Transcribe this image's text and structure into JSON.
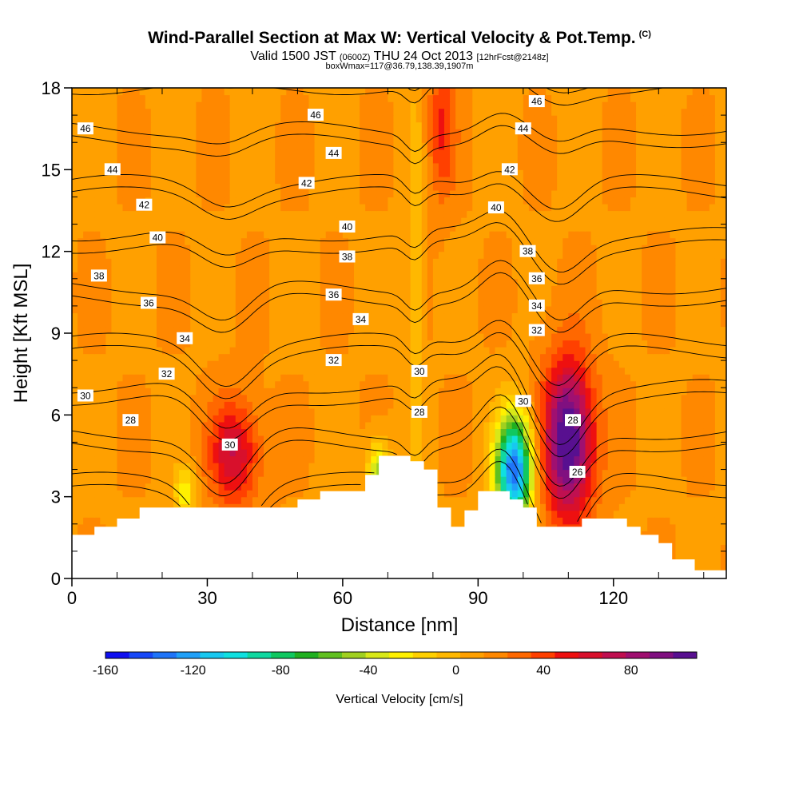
{
  "header": {
    "title": "Wind-Parallel Section at Max W: Vertical Velocity & Pot.Temp.",
    "copyright": "(C)",
    "valid_prefix": "Valid 1500 JST",
    "valid_utc": "(0600Z)",
    "valid_date": "THU 24 Oct 2013",
    "forecast": "[12hrFcst@2148z]",
    "box_info": "boxWmax=117@36.79,138.39,1907m"
  },
  "chart_data": {
    "type": "heatmap",
    "xlabel": "Distance [nm]",
    "ylabel": "Height [Kft MSL]",
    "xlim": [
      0,
      145
    ],
    "ylim": [
      0,
      18
    ],
    "x_ticks": [
      0,
      30,
      60,
      90,
      120
    ],
    "y_ticks": [
      0,
      3,
      6,
      9,
      12,
      15,
      18
    ],
    "colorbar": {
      "label": "Vertical Velocity [cm/s]",
      "range": [
        -160,
        110
      ],
      "tick_values": [
        -160,
        -120,
        -80,
        -40,
        0,
        40,
        80
      ],
      "colors": [
        "#1010f0",
        "#1848f8",
        "#1f74f8",
        "#20a0f8",
        "#18c8f0",
        "#10e0e0",
        "#10d8a0",
        "#10c860",
        "#20b020",
        "#60c020",
        "#a0d020",
        "#d8e818",
        "#fff000",
        "#ffd000",
        "#ffb800",
        "#ffa000",
        "#ff8800",
        "#ff6800",
        "#ff4000",
        "#ee1010",
        "#d8102c",
        "#c01050",
        "#a01070",
        "#801080",
        "#581090"
      ]
    },
    "terrain": [
      [
        0,
        1.6
      ],
      [
        5,
        1.6
      ],
      [
        5,
        1.9
      ],
      [
        10,
        1.9
      ],
      [
        10,
        2.2
      ],
      [
        15,
        2.2
      ],
      [
        15,
        2.6
      ],
      [
        50,
        2.6
      ],
      [
        50,
        2.9
      ],
      [
        55,
        2.9
      ],
      [
        55,
        3.2
      ],
      [
        65,
        3.2
      ],
      [
        65,
        3.8
      ],
      [
        68,
        3.8
      ],
      [
        68,
        4.5
      ],
      [
        75,
        4.5
      ],
      [
        75,
        4.3
      ],
      [
        78,
        4.3
      ],
      [
        78,
        4.0
      ],
      [
        81,
        4.0
      ],
      [
        81,
        2.6
      ],
      [
        84,
        2.6
      ],
      [
        84,
        1.9
      ],
      [
        87,
        1.9
      ],
      [
        87,
        2.5
      ],
      [
        90,
        2.5
      ],
      [
        90,
        3.2
      ],
      [
        97,
        3.2
      ],
      [
        97,
        2.9
      ],
      [
        100,
        2.9
      ],
      [
        100,
        2.6
      ],
      [
        103,
        2.6
      ],
      [
        103,
        1.9
      ],
      [
        113,
        1.9
      ],
      [
        113,
        2.2
      ],
      [
        123,
        2.2
      ],
      [
        123,
        1.9
      ],
      [
        126,
        1.9
      ],
      [
        126,
        1.6
      ],
      [
        130,
        1.6
      ],
      [
        130,
        1.3
      ],
      [
        133,
        1.3
      ],
      [
        133,
        0.7
      ],
      [
        138,
        0.7
      ],
      [
        138,
        0.3
      ],
      [
        145,
        0.3
      ]
    ],
    "w_features": [
      {
        "cx": 36,
        "cy": 4.6,
        "rx": 5.5,
        "ry": 1.9,
        "w": 55
      },
      {
        "cx": 110,
        "cy": 5.1,
        "rx": 5.5,
        "ry": 2.9,
        "w": 105
      },
      {
        "cx": 98,
        "cy": 4.0,
        "rx": 4.0,
        "ry": 2.0,
        "w": -150
      },
      {
        "cx": 82,
        "cy": 16.5,
        "rx": 3.0,
        "ry": 2.5,
        "w": 35
      },
      {
        "cx": 76,
        "cy": 10.5,
        "rx": 1.6,
        "ry": 7.0,
        "w": -25
      },
      {
        "cx": 68,
        "cy": 3.9,
        "rx": 2.5,
        "ry": 1.2,
        "w": -60
      },
      {
        "cx": 25,
        "cy": 3.2,
        "rx": 2.5,
        "ry": 0.9,
        "w": -40
      }
    ],
    "theta_levels": [
      26,
      28,
      30,
      32,
      34,
      36,
      38,
      40,
      42,
      44,
      46
    ],
    "contour_labels": [
      {
        "x": 3,
        "y": 16.5,
        "text": "46"
      },
      {
        "x": 54,
        "y": 17.0,
        "text": "46"
      },
      {
        "x": 103,
        "y": 17.5,
        "text": "46"
      },
      {
        "x": 9,
        "y": 15.0,
        "text": "44"
      },
      {
        "x": 58,
        "y": 15.6,
        "text": "44"
      },
      {
        "x": 100,
        "y": 16.5,
        "text": "44"
      },
      {
        "x": 16,
        "y": 13.7,
        "text": "42"
      },
      {
        "x": 52,
        "y": 14.5,
        "text": "42"
      },
      {
        "x": 97,
        "y": 15.0,
        "text": "42"
      },
      {
        "x": 19,
        "y": 12.5,
        "text": "40"
      },
      {
        "x": 61,
        "y": 12.9,
        "text": "40"
      },
      {
        "x": 94,
        "y": 13.6,
        "text": "40"
      },
      {
        "x": 6,
        "y": 11.1,
        "text": "38"
      },
      {
        "x": 61,
        "y": 11.8,
        "text": "38"
      },
      {
        "x": 101,
        "y": 12.0,
        "text": "38"
      },
      {
        "x": 17,
        "y": 10.1,
        "text": "36"
      },
      {
        "x": 58,
        "y": 10.4,
        "text": "36"
      },
      {
        "x": 103,
        "y": 11.0,
        "text": "36"
      },
      {
        "x": 25,
        "y": 8.8,
        "text": "34"
      },
      {
        "x": 64,
        "y": 9.5,
        "text": "34"
      },
      {
        "x": 103,
        "y": 10.0,
        "text": "34"
      },
      {
        "x": 21,
        "y": 7.5,
        "text": "32"
      },
      {
        "x": 58,
        "y": 8.0,
        "text": "32"
      },
      {
        "x": 103,
        "y": 9.1,
        "text": "32"
      },
      {
        "x": 3,
        "y": 6.7,
        "text": "30"
      },
      {
        "x": 77,
        "y": 7.6,
        "text": "30"
      },
      {
        "x": 100,
        "y": 6.5,
        "text": "30"
      },
      {
        "x": 35,
        "y": 4.9,
        "text": "30"
      },
      {
        "x": 13,
        "y": 5.8,
        "text": "28"
      },
      {
        "x": 77,
        "y": 6.1,
        "text": "28"
      },
      {
        "x": 111,
        "y": 5.8,
        "text": "28"
      },
      {
        "x": 112,
        "y": 3.9,
        "text": "26"
      }
    ]
  }
}
